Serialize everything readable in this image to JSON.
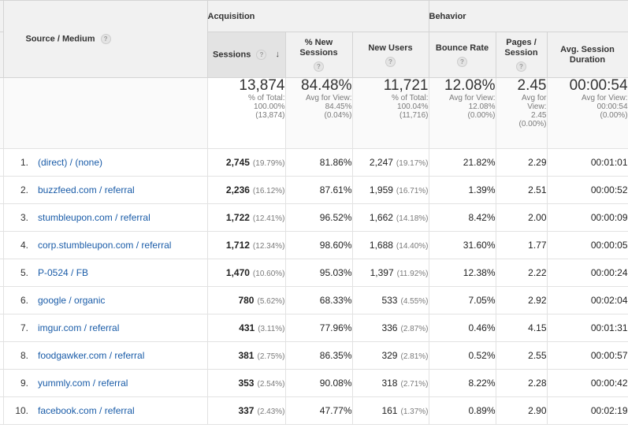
{
  "header": {
    "source_medium": "Source / Medium",
    "acquisition": "Acquisition",
    "behavior": "Behavior",
    "help_icon": "?",
    "sort_icon": "↓",
    "columns": {
      "sessions": "Sessions",
      "pct_new_sessions": "% New Sessions",
      "new_users": "New Users",
      "bounce_rate": "Bounce Rate",
      "pages_session": "Pages / Session",
      "avg_session_duration": "Avg. Session Duration"
    }
  },
  "totals": {
    "sessions": {
      "value": "13,874",
      "line1": "% of Total:",
      "line2": "100.00%",
      "line3": "(13,874)"
    },
    "pct_new_sessions": {
      "value": "84.48%",
      "line1": "Avg for View:",
      "line2": "84.45%",
      "line3": "(0.04%)"
    },
    "new_users": {
      "value": "11,721",
      "line1": "% of Total:",
      "line2": "100.04%",
      "line3": "(11,716)"
    },
    "bounce_rate": {
      "value": "12.08%",
      "line1": "Avg for View:",
      "line2": "12.08%",
      "line3": "(0.00%)"
    },
    "pages_session": {
      "value": "2.45",
      "line1": "Avg for",
      "line2": "View:",
      "line3": "2.45",
      "line4": "(0.00%)"
    },
    "avg_session_duration": {
      "value": "00:00:54",
      "line1": "Avg for View:",
      "line2": "00:00:54",
      "line3": "(0.00%)"
    }
  },
  "rows": [
    {
      "idx": "1.",
      "source": "(direct) / (none)",
      "sessions": "2,745",
      "sessions_pct": "(19.79%)",
      "pct_new": "81.86%",
      "new_users": "2,247",
      "new_users_pct": "(19.17%)",
      "bounce": "21.82%",
      "pages": "2.29",
      "duration": "00:01:01"
    },
    {
      "idx": "2.",
      "source": "buzzfeed.com / referral",
      "sessions": "2,236",
      "sessions_pct": "(16.12%)",
      "pct_new": "87.61%",
      "new_users": "1,959",
      "new_users_pct": "(16.71%)",
      "bounce": "1.39%",
      "pages": "2.51",
      "duration": "00:00:52"
    },
    {
      "idx": "3.",
      "source": "stumbleupon.com / referral",
      "sessions": "1,722",
      "sessions_pct": "(12.41%)",
      "pct_new": "96.52%",
      "new_users": "1,662",
      "new_users_pct": "(14.18%)",
      "bounce": "8.42%",
      "pages": "2.00",
      "duration": "00:00:09"
    },
    {
      "idx": "4.",
      "source": "corp.stumbleupon.com / referral",
      "sessions": "1,712",
      "sessions_pct": "(12.34%)",
      "pct_new": "98.60%",
      "new_users": "1,688",
      "new_users_pct": "(14.40%)",
      "bounce": "31.60%",
      "pages": "1.77",
      "duration": "00:00:05"
    },
    {
      "idx": "5.",
      "source": "P-0524 / FB",
      "sessions": "1,470",
      "sessions_pct": "(10.60%)",
      "pct_new": "95.03%",
      "new_users": "1,397",
      "new_users_pct": "(11.92%)",
      "bounce": "12.38%",
      "pages": "2.22",
      "duration": "00:00:24"
    },
    {
      "idx": "6.",
      "source": "google / organic",
      "sessions": "780",
      "sessions_pct": "(5.62%)",
      "pct_new": "68.33%",
      "new_users": "533",
      "new_users_pct": "(4.55%)",
      "bounce": "7.05%",
      "pages": "2.92",
      "duration": "00:02:04"
    },
    {
      "idx": "7.",
      "source": "imgur.com / referral",
      "sessions": "431",
      "sessions_pct": "(3.11%)",
      "pct_new": "77.96%",
      "new_users": "336",
      "new_users_pct": "(2.87%)",
      "bounce": "0.46%",
      "pages": "4.15",
      "duration": "00:01:31"
    },
    {
      "idx": "8.",
      "source": "foodgawker.com / referral",
      "sessions": "381",
      "sessions_pct": "(2.75%)",
      "pct_new": "86.35%",
      "new_users": "329",
      "new_users_pct": "(2.81%)",
      "bounce": "0.52%",
      "pages": "2.55",
      "duration": "00:00:57"
    },
    {
      "idx": "9.",
      "source": "yummly.com / referral",
      "sessions": "353",
      "sessions_pct": "(2.54%)",
      "pct_new": "90.08%",
      "new_users": "318",
      "new_users_pct": "(2.71%)",
      "bounce": "8.22%",
      "pages": "2.28",
      "duration": "00:00:42"
    },
    {
      "idx": "10.",
      "source": "facebook.com / referral",
      "sessions": "337",
      "sessions_pct": "(2.43%)",
      "pct_new": "47.77%",
      "new_users": "161",
      "new_users_pct": "(1.37%)",
      "bounce": "0.89%",
      "pages": "2.90",
      "duration": "00:02:19"
    }
  ],
  "colors": {
    "link": "#1a5ca8",
    "header_bg": "#f1f1f1",
    "sorted_header_bg": "#e3e3e3"
  }
}
